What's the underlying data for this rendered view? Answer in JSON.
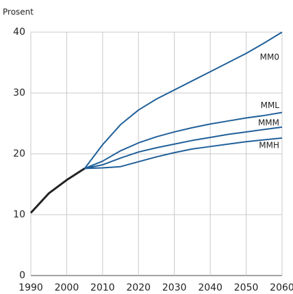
{
  "chart_data": {
    "type": "line",
    "y_label": "Prosent",
    "x": [
      1990,
      1995,
      2000,
      2005,
      2010,
      2015,
      2020,
      2025,
      2030,
      2035,
      2040,
      2045,
      2050,
      2055,
      2060
    ],
    "series": [
      {
        "color": "#222222",
        "values": [
          10.3,
          13.5,
          15.7,
          17.6,
          null,
          null,
          null,
          null,
          null,
          null,
          null,
          null,
          null,
          null,
          null
        ]
      },
      {
        "name": "MM0",
        "color": "#1f5f99",
        "values": [
          null,
          null,
          null,
          17.6,
          21.5,
          24.8,
          27.2,
          29.0,
          30.5,
          32.0,
          33.5,
          35.0,
          36.5,
          38.2,
          40.0
        ]
      },
      {
        "name": "MML",
        "color": "#1f5f99",
        "values": [
          null,
          null,
          null,
          17.6,
          18.8,
          20.5,
          21.8,
          22.8,
          23.6,
          24.3,
          24.9,
          25.4,
          25.9,
          26.3,
          26.8
        ]
      },
      {
        "name": "MMM",
        "color": "#1f5f99",
        "values": [
          null,
          null,
          null,
          17.6,
          18.2,
          19.3,
          20.3,
          21.0,
          21.6,
          22.2,
          22.7,
          23.2,
          23.6,
          24.0,
          24.4
        ]
      },
      {
        "name": "MMH",
        "color": "#1f5f99",
        "values": [
          null,
          null,
          null,
          17.6,
          17.7,
          17.9,
          18.7,
          19.5,
          20.2,
          20.8,
          21.2,
          21.6,
          22.0,
          22.3,
          22.6
        ]
      }
    ],
    "xlim": [
      1990,
      2060
    ],
    "xticks": [
      1990,
      2000,
      2010,
      2020,
      2030,
      2040,
      2050,
      2060
    ],
    "ylim": [
      0,
      40
    ],
    "yticks": [
      0,
      10,
      20,
      30,
      40
    ],
    "grid": true
  }
}
